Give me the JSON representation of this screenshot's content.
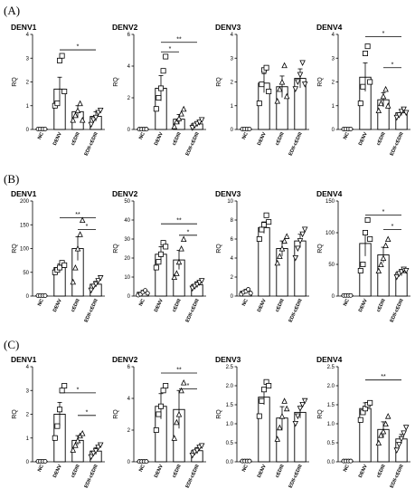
{
  "panels": [
    {
      "label": "(A)"
    },
    {
      "label": "(B)"
    },
    {
      "label": "(C)"
    }
  ],
  "chart_data": [
    {
      "type": "bar",
      "panel": "(A)",
      "title": "DENV1",
      "ylabel": "RQ",
      "ylim": [
        0,
        4
      ],
      "yticks": [
        0,
        1,
        2,
        3,
        4
      ],
      "categories": [
        "NC",
        "DENV",
        "cEDIII",
        "EDII-cEDIII"
      ],
      "values": [
        0.02,
        1.7,
        0.75,
        0.55
      ],
      "sem": [
        0.02,
        0.5,
        0.25,
        0.2
      ],
      "points": [
        [
          0.02,
          0.02,
          0.02,
          0.02
        ],
        [
          1.0,
          1.1,
          2.9,
          3.1,
          1.6
        ],
        [
          0.4,
          0.6,
          0.8,
          1.1,
          0.4
        ],
        [
          0.2,
          0.4,
          0.5,
          0.7,
          0.8
        ]
      ],
      "markers": [
        "circle",
        "square",
        "triangle",
        "down-triangle"
      ],
      "significance": [
        {
          "from": 1,
          "to": 3,
          "label": "*",
          "y": 3.35
        }
      ]
    },
    {
      "type": "bar",
      "panel": "(A)",
      "title": "DENV2",
      "ylabel": "RQ",
      "ylim": [
        0,
        6
      ],
      "yticks": [
        0,
        2,
        4,
        6
      ],
      "categories": [
        "NC",
        "DENV",
        "cEDIII",
        "EDII-cEDIII"
      ],
      "values": [
        0.02,
        2.6,
        0.65,
        0.35
      ],
      "sem": [
        0.02,
        0.8,
        0.3,
        0.15
      ],
      "points": [
        [
          0.02,
          0.02,
          0.02,
          0.02
        ],
        [
          1.3,
          2.0,
          2.6,
          3.7,
          4.6
        ],
        [
          0.2,
          0.5,
          0.7,
          1.0,
          1.3
        ],
        [
          0.1,
          0.25,
          0.35,
          0.45,
          0.6
        ]
      ],
      "markers": [
        "circle",
        "square",
        "triangle",
        "down-triangle"
      ],
      "significance": [
        {
          "from": 1,
          "to": 2,
          "label": "*",
          "y": 4.9
        },
        {
          "from": 1,
          "to": 3,
          "label": "**",
          "y": 5.5
        }
      ]
    },
    {
      "type": "bar",
      "panel": "(A)",
      "title": "DENV3",
      "ylabel": "RQ",
      "ylim": [
        0,
        4
      ],
      "yticks": [
        0,
        1,
        2,
        3,
        4
      ],
      "categories": [
        "NC",
        "DENV",
        "cEDIII",
        "EDII-cEDIII"
      ],
      "values": [
        0.02,
        1.95,
        1.8,
        2.15
      ],
      "sem": [
        0.02,
        0.4,
        0.45,
        0.4
      ],
      "points": [
        [
          0.02,
          0.02,
          0.02,
          0.02
        ],
        [
          1.1,
          1.9,
          2.5,
          2.6,
          1.6
        ],
        [
          1.2,
          1.7,
          2.0,
          2.7,
          1.4
        ],
        [
          1.7,
          2.0,
          2.3,
          2.8,
          1.9
        ]
      ],
      "markers": [
        "circle",
        "square",
        "triangle",
        "down-triangle"
      ],
      "significance": []
    },
    {
      "type": "bar",
      "panel": "(A)",
      "title": "DENV4",
      "ylabel": "RQ",
      "ylim": [
        0,
        4
      ],
      "yticks": [
        0,
        1,
        2,
        3,
        4
      ],
      "categories": [
        "NC",
        "DENV",
        "cEDIII",
        "EDII-cEDIII"
      ],
      "values": [
        0.02,
        2.2,
        1.25,
        0.7
      ],
      "sem": [
        0.02,
        0.6,
        0.3,
        0.12
      ],
      "points": [
        [
          0.02,
          0.02,
          0.02,
          0.02
        ],
        [
          1.1,
          1.8,
          3.2,
          3.5,
          2.0
        ],
        [
          0.8,
          1.1,
          1.4,
          1.7,
          1.0
        ],
        [
          0.5,
          0.6,
          0.75,
          0.85,
          0.7
        ]
      ],
      "markers": [
        "circle",
        "square",
        "triangle",
        "down-triangle"
      ],
      "significance": [
        {
          "from": 1,
          "to": 3,
          "label": "*",
          "y": 3.9
        },
        {
          "from": 2,
          "to": 3,
          "label": "*",
          "y": 2.6
        }
      ]
    },
    {
      "type": "bar",
      "panel": "(B)",
      "title": "DENV1",
      "ylabel": "RQ",
      "ylim": [
        0,
        200
      ],
      "yticks": [
        0,
        50,
        100,
        150,
        200
      ],
      "categories": [
        "NC",
        "DENV",
        "cEDIII",
        "EDII-cEDIII"
      ],
      "values": [
        1,
        60,
        100,
        25
      ],
      "sem": [
        1,
        8,
        25,
        6
      ],
      "points": [
        [
          1,
          1,
          1,
          1
        ],
        [
          50,
          55,
          60,
          70,
          65
        ],
        [
          30,
          60,
          100,
          130,
          160
        ],
        [
          12,
          20,
          25,
          32,
          38
        ]
      ],
      "markers": [
        "circle",
        "square",
        "triangle",
        "down-triangle"
      ],
      "significance": [
        {
          "from": 1,
          "to": 3,
          "label": "**",
          "y": 165
        },
        {
          "from": 2,
          "to": 3,
          "label": "*",
          "y": 140
        }
      ]
    },
    {
      "type": "bar",
      "panel": "(B)",
      "title": "DENV2",
      "ylabel": "RQ",
      "ylim": [
        0,
        50
      ],
      "yticks": [
        0,
        10,
        20,
        30,
        40,
        50
      ],
      "categories": [
        "NC",
        "DENV",
        "cEDIII",
        "EDII-cEDIII"
      ],
      "values": [
        2,
        22,
        19,
        6
      ],
      "sem": [
        1,
        4,
        5,
        1.5
      ],
      "points": [
        [
          0.5,
          1,
          2,
          3,
          1.5
        ],
        [
          15,
          18,
          22,
          28,
          26
        ],
        [
          10,
          12,
          18,
          25,
          30
        ],
        [
          4,
          5,
          6,
          7,
          8
        ]
      ],
      "markers": [
        "circle",
        "square",
        "triangle",
        "down-triangle"
      ],
      "significance": [
        {
          "from": 1,
          "to": 3,
          "label": "**",
          "y": 38
        },
        {
          "from": 2,
          "to": 3,
          "label": "*",
          "y": 32
        }
      ]
    },
    {
      "type": "bar",
      "panel": "(B)",
      "title": "DENV3",
      "ylabel": "RQ",
      "ylim": [
        0,
        10
      ],
      "yticks": [
        0,
        2,
        4,
        6,
        8,
        10
      ],
      "categories": [
        "NC",
        "DENV",
        "cEDIII",
        "EDII-cEDIII"
      ],
      "values": [
        0.5,
        7.2,
        5.0,
        5.8
      ],
      "sem": [
        0.2,
        0.6,
        0.8,
        0.7
      ],
      "points": [
        [
          0.2,
          0.4,
          0.5,
          0.7,
          0.3
        ],
        [
          6.0,
          7.0,
          7.5,
          8.5,
          7.8
        ],
        [
          3.5,
          4.2,
          5.0,
          5.8,
          6.3
        ],
        [
          4.0,
          5.0,
          5.8,
          6.5,
          7.0
        ]
      ],
      "markers": [
        "circle",
        "square",
        "triangle",
        "down-triangle"
      ],
      "significance": []
    },
    {
      "type": "bar",
      "panel": "(B)",
      "title": "DENV4",
      "ylabel": "RQ",
      "ylim": [
        0,
        150
      ],
      "yticks": [
        0,
        50,
        100,
        150
      ],
      "categories": [
        "NC",
        "DENV",
        "cEDIII",
        "EDII-cEDIII"
      ],
      "values": [
        1,
        83,
        65,
        37
      ],
      "sem": [
        1,
        20,
        12,
        5
      ],
      "points": [
        [
          1,
          1,
          1,
          1
        ],
        [
          40,
          50,
          100,
          120,
          90
        ],
        [
          40,
          50,
          60,
          80,
          90
        ],
        [
          30,
          35,
          38,
          42,
          40
        ]
      ],
      "markers": [
        "circle",
        "square",
        "triangle",
        "down-triangle"
      ],
      "significance": [
        {
          "from": 1,
          "to": 3,
          "label": "*",
          "y": 128
        },
        {
          "from": 2,
          "to": 3,
          "label": "*",
          "y": 105
        }
      ]
    },
    {
      "type": "bar",
      "panel": "(C)",
      "title": "DENV1",
      "ylabel": "RQ",
      "ylim": [
        0,
        4
      ],
      "yticks": [
        0,
        1,
        2,
        3,
        4
      ],
      "categories": [
        "NC",
        "DENV",
        "cEDIII",
        "EDII-cEDIII"
      ],
      "values": [
        0.02,
        2.0,
        0.9,
        0.45
      ],
      "sem": [
        0.02,
        0.5,
        0.2,
        0.15
      ],
      "points": [
        [
          0.02,
          0.02,
          0.02,
          0.02
        ],
        [
          1.0,
          1.5,
          2.2,
          3.0,
          3.2
        ],
        [
          0.5,
          0.7,
          0.9,
          1.1,
          1.2
        ],
        [
          0.2,
          0.35,
          0.45,
          0.6,
          0.7
        ]
      ],
      "markers": [
        "circle",
        "square",
        "triangle",
        "down-triangle"
      ],
      "significance": [
        {
          "from": 1,
          "to": 3,
          "label": "*",
          "y": 2.9
        },
        {
          "from": 2,
          "to": 3,
          "label": "*",
          "y": 1.95
        }
      ]
    },
    {
      "type": "bar",
      "panel": "(C)",
      "title": "DENV2",
      "ylabel": "RQ",
      "ylim": [
        0,
        6
      ],
      "yticks": [
        0,
        2,
        4,
        6
      ],
      "categories": [
        "NC",
        "DENV",
        "cEDIII",
        "EDII-cEDIII"
      ],
      "values": [
        0.02,
        3.5,
        3.3,
        0.7
      ],
      "sem": [
        0.02,
        0.8,
        1.2,
        0.2
      ],
      "points": [
        [
          0.02,
          0.02,
          0.02,
          0.02
        ],
        [
          2.0,
          3.0,
          3.5,
          4.5,
          4.8
        ],
        [
          1.5,
          2.5,
          3.0,
          4.5,
          5.0
        ],
        [
          0.4,
          0.6,
          0.7,
          0.9,
          1.0
        ]
      ],
      "markers": [
        "circle",
        "square",
        "triangle",
        "down-triangle"
      ],
      "significance": [
        {
          "from": 1,
          "to": 3,
          "label": "**",
          "y": 5.6
        },
        {
          "from": 2,
          "to": 3,
          "label": "*",
          "y": 4.6
        }
      ]
    },
    {
      "type": "bar",
      "panel": "(C)",
      "title": "DENV3",
      "ylabel": "RQ",
      "ylim": [
        0,
        2.5
      ],
      "yticks": [
        0.0,
        0.5,
        1.0,
        1.5,
        2.0,
        2.5
      ],
      "ytickfmt": 1,
      "categories": [
        "NC",
        "DENV",
        "cEDIII",
        "EDII-cEDIII"
      ],
      "values": [
        0.02,
        1.7,
        1.15,
        1.3
      ],
      "sem": [
        0.02,
        0.2,
        0.3,
        0.15
      ],
      "points": [
        [
          0.02,
          0.02,
          0.02,
          0.02
        ],
        [
          1.2,
          1.6,
          1.9,
          2.1,
          2.0
        ],
        [
          0.6,
          0.9,
          1.2,
          1.6,
          1.4
        ],
        [
          1.0,
          1.2,
          1.4,
          1.5,
          1.6
        ]
      ],
      "markers": [
        "circle",
        "square",
        "triangle",
        "down-triangle"
      ],
      "significance": []
    },
    {
      "type": "bar",
      "panel": "(C)",
      "title": "DENV4",
      "ylabel": "RQ",
      "ylim": [
        0,
        2.5
      ],
      "yticks": [
        0.0,
        0.5,
        1.0,
        1.5,
        2.0,
        2.5
      ],
      "ytickfmt": 1,
      "categories": [
        "NC",
        "DENV",
        "cEDIII",
        "EDII-cEDIII"
      ],
      "values": [
        0.02,
        1.4,
        0.85,
        0.6
      ],
      "sem": [
        0.02,
        0.15,
        0.2,
        0.12
      ],
      "points": [
        [
          0.02,
          0.02,
          0.02,
          0.02
        ],
        [
          1.1,
          1.3,
          1.4,
          1.5,
          1.55
        ],
        [
          0.5,
          0.7,
          0.8,
          1.0,
          1.2
        ],
        [
          0.3,
          0.45,
          0.6,
          0.75,
          0.9
        ]
      ],
      "markers": [
        "circle",
        "square",
        "triangle",
        "down-triangle"
      ],
      "significance": [
        {
          "from": 1,
          "to": 3,
          "label": "**",
          "y": 2.15
        }
      ]
    }
  ]
}
